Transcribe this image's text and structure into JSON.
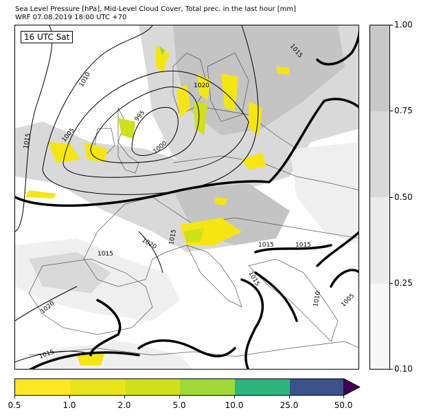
{
  "header": {
    "title_line1": "Sea Level Pressure [hPa], Mid-Level Cloud Cover, Total prec. in the last hour [mm]",
    "title_line2": "WRF 07.08.2019 18:00 UTC +70"
  },
  "map": {
    "time_badge": "16 UTC Sat",
    "isobar_labels": [
      "995",
      "1000",
      "1005",
      "1010",
      "1015",
      "1015",
      "1015",
      "1015",
      "1015",
      "1015",
      "1015",
      "1015",
      "1020",
      "1020",
      "1020",
      "1005",
      "1010"
    ],
    "isobar_lines": [
      {
        "label": "995",
        "pressure_hpa": 995
      },
      {
        "label": "1000",
        "pressure_hpa": 1000
      },
      {
        "label": "1005",
        "pressure_hpa": 1005
      },
      {
        "label": "1010",
        "pressure_hpa": 1010
      },
      {
        "label": "1015",
        "pressure_hpa": 1015
      },
      {
        "label": "1020",
        "pressure_hpa": 1020
      }
    ],
    "colors": {
      "isobar": "#000000",
      "coast_borders": "#555555",
      "cloud_light": "#efefef",
      "cloud_medium": "#d9d9d9",
      "cloud_dense": "#c4c4c4",
      "precip_low": "#f5e612",
      "precip_mid": "#cfe11a",
      "precip_high": "#95d542"
    }
  },
  "cloud_cover_colorbar": {
    "ticks": [
      "0.10",
      "0.25",
      "0.50",
      "0.75",
      "1.00"
    ],
    "colors": [
      "#f7f7f7",
      "#ebebeb",
      "#d9d9d9",
      "#c8c8c8"
    ]
  },
  "precip_colorbar": {
    "ticks": [
      "0.5",
      "1.0",
      "2.0",
      "5.0",
      "10.0",
      "25.0",
      "50.0"
    ],
    "colors": [
      "#fde725",
      "#eae51a",
      "#d0e11c",
      "#a0da39",
      "#2fb47c",
      "#3b528b",
      "#440154"
    ]
  }
}
